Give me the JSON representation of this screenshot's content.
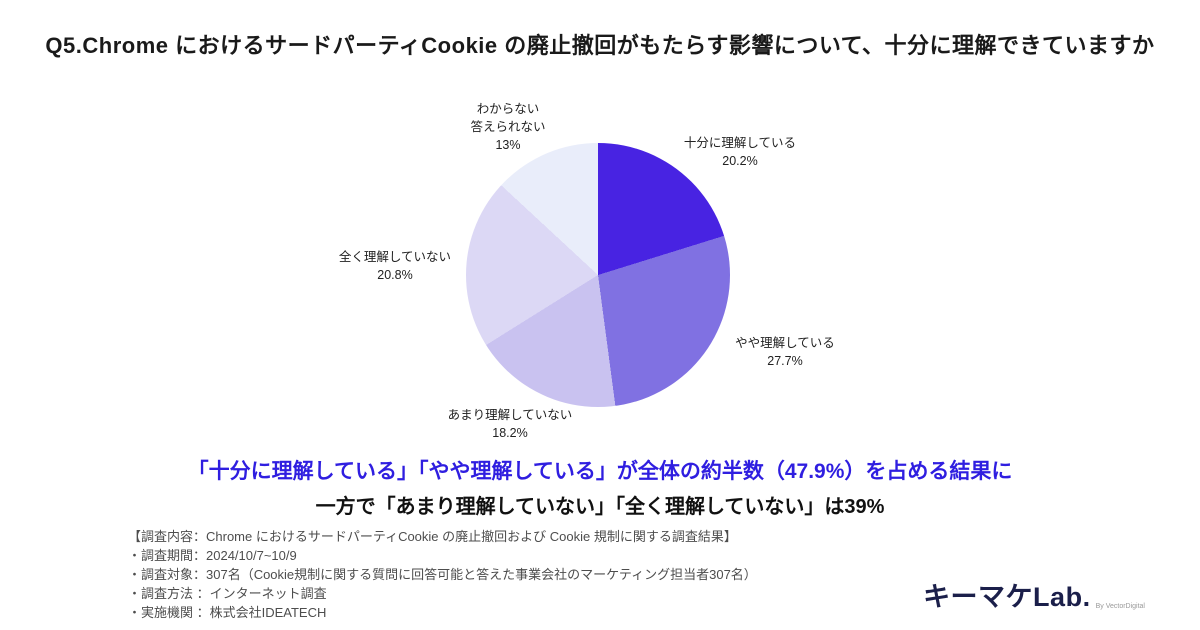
{
  "title": "Q5.Chrome におけるサードパーティCookie の廃止撤回がもたらす影響について、十分に理解できていますか",
  "chart_data": {
    "type": "pie",
    "start_angle_deg": 0,
    "direction": "clockwise",
    "title": "",
    "legend_position": "none",
    "slices": [
      {
        "label": "十分に理解している",
        "value": 20.2,
        "color": "#4823e2"
      },
      {
        "label": "やや理解している",
        "value": 27.7,
        "color": "#8071e2"
      },
      {
        "label": "あまり理解していない",
        "value": 18.2,
        "color": "#c9c2f0"
      },
      {
        "label": "全く理解していない",
        "value": 20.8,
        "color": "#dcd8f5"
      },
      {
        "label": "わからない\n答えられない",
        "value": 13,
        "color": "#e9edfa"
      }
    ]
  },
  "summary": {
    "line1": "「十分に理解している」「やや理解している」が全体の約半数（47.9%）を占める結果に",
    "line1_color": "#2f1ee0",
    "line2": "一方で「あまり理解していない」「全く理解していない」は39%"
  },
  "survey_info": {
    "header": "【調査内容：Chrome におけるサードパーティCookie の廃止撤回および Cookie 規制に関する調査結果】",
    "items": [
      "・調査期間：2024/10/7~10/9",
      "・調査対象：307名（Cookie規制に関する質問に回答可能と答えた事業会社のマーケティング担当者307名）",
      "・調査方法 ：インターネット調査",
      "・実施機関 ：株式会社IDEATECH"
    ]
  },
  "logo": {
    "text": "キーマケLab.",
    "byline": "By VectorDigital"
  }
}
